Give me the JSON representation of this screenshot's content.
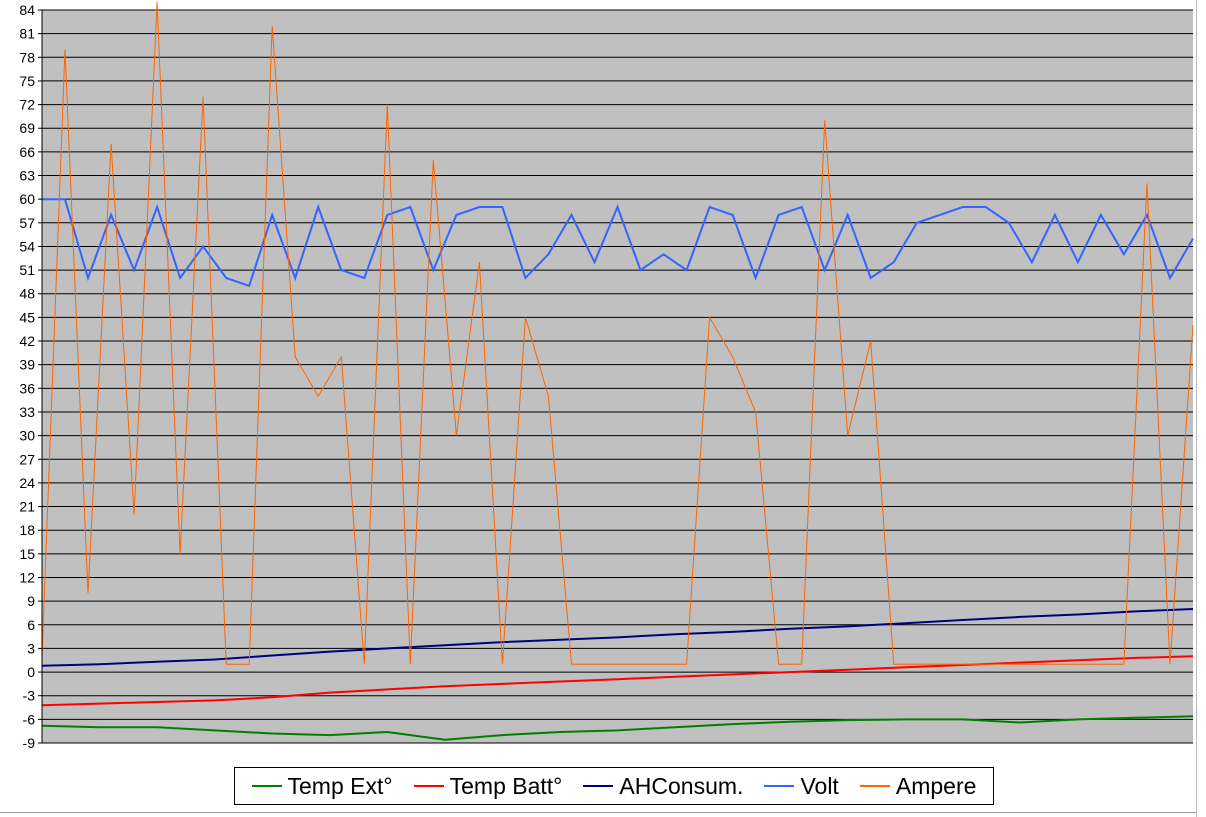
{
  "chart_data": {
    "type": "line",
    "title": "",
    "xlabel": "",
    "ylabel": "",
    "ylim": [
      -9,
      84
    ],
    "yticks": [
      -9,
      -6,
      -3,
      0,
      3,
      6,
      9,
      12,
      15,
      18,
      21,
      24,
      27,
      30,
      33,
      36,
      39,
      42,
      45,
      48,
      51,
      54,
      57,
      60,
      63,
      66,
      69,
      72,
      75,
      78,
      81,
      84
    ],
    "grid": true,
    "plot_background": "#c0c0c0",
    "legend_position": "bottom",
    "series": [
      {
        "name": "Temp Ext°",
        "color": "#008000",
        "x": [
          0,
          5,
          10,
          15,
          20,
          25,
          30,
          35,
          40,
          45,
          50,
          55,
          60,
          65,
          70,
          75,
          80,
          85,
          90,
          95,
          100
        ],
        "values": [
          -6.8,
          -7.0,
          -7.0,
          -7.4,
          -7.8,
          -8.0,
          -7.6,
          -8.6,
          -8.0,
          -7.6,
          -7.4,
          -7.0,
          -6.6,
          -6.3,
          -6.1,
          -6.0,
          -6.0,
          -6.4,
          -6.0,
          -5.8,
          -5.6
        ]
      },
      {
        "name": "Temp Batt°",
        "color": "#ff0000",
        "x": [
          0,
          5,
          10,
          15,
          20,
          25,
          30,
          35,
          40,
          45,
          50,
          55,
          60,
          65,
          70,
          75,
          80,
          85,
          90,
          95,
          100
        ],
        "values": [
          -4.2,
          -4.0,
          -3.8,
          -3.6,
          -3.2,
          -2.6,
          -2.2,
          -1.8,
          -1.5,
          -1.2,
          -0.9,
          -0.6,
          -0.3,
          0.0,
          0.3,
          0.6,
          0.9,
          1.2,
          1.5,
          1.8,
          2.0
        ]
      },
      {
        "name": "AHConsum.",
        "color": "#000080",
        "x": [
          0,
          5,
          10,
          15,
          20,
          25,
          30,
          35,
          40,
          45,
          50,
          55,
          60,
          65,
          70,
          75,
          80,
          85,
          90,
          95,
          100
        ],
        "values": [
          0.8,
          1.0,
          1.3,
          1.6,
          2.1,
          2.6,
          3.0,
          3.4,
          3.8,
          4.1,
          4.4,
          4.8,
          5.1,
          5.5,
          5.8,
          6.2,
          6.6,
          7.0,
          7.3,
          7.7,
          8.0
        ]
      },
      {
        "name": "Volt",
        "color": "#3366ff",
        "x": [
          0,
          2,
          4,
          6,
          8,
          10,
          12,
          14,
          16,
          18,
          20,
          22,
          24,
          26,
          28,
          30,
          32,
          34,
          36,
          38,
          40,
          42,
          44,
          46,
          48,
          50,
          52,
          54,
          56,
          58,
          60,
          62,
          64,
          66,
          68,
          70,
          72,
          74,
          76,
          78,
          80,
          82,
          84,
          86,
          88,
          90,
          92,
          94,
          96,
          98,
          100
        ],
        "values": [
          60,
          60,
          50,
          58,
          51,
          59,
          50,
          54,
          50,
          49,
          58,
          50,
          59,
          51,
          50,
          58,
          59,
          51,
          58,
          59,
          59,
          50,
          53,
          58,
          52,
          59,
          51,
          53,
          51,
          59,
          58,
          50,
          58,
          59,
          51,
          58,
          50,
          52,
          57,
          58,
          59,
          59,
          57,
          52,
          58,
          52,
          58,
          53,
          58,
          50,
          55
        ]
      },
      {
        "name": "Ampere",
        "color": "#ff6600",
        "x": [
          0,
          2,
          4,
          6,
          8,
          10,
          12,
          14,
          16,
          18,
          20,
          22,
          24,
          26,
          28,
          30,
          32,
          34,
          36,
          38,
          40,
          42,
          44,
          46,
          48,
          50,
          52,
          54,
          56,
          58,
          60,
          62,
          64,
          66,
          68,
          70,
          72,
          74,
          76,
          78,
          80,
          82,
          84,
          86,
          88,
          90,
          92,
          94,
          96,
          98,
          100
        ],
        "values": [
          2,
          79,
          10,
          67,
          20,
          85,
          15,
          73,
          1,
          1,
          82,
          40,
          35,
          40,
          1,
          72,
          1,
          65,
          30,
          52,
          1,
          45,
          35,
          1,
          1,
          1,
          1,
          1,
          1,
          45,
          40,
          33,
          1,
          1,
          70,
          30,
          42,
          1,
          1,
          1,
          1,
          1,
          1,
          1,
          1,
          1,
          1,
          1,
          62,
          1,
          44
        ]
      }
    ]
  },
  "legend": {
    "items": [
      {
        "label": "Temp Ext°",
        "color": "#008000"
      },
      {
        "label": "Temp Batt°",
        "color": "#ff0000"
      },
      {
        "label": "AHConsum.",
        "color": "#000080"
      },
      {
        "label": "Volt",
        "color": "#3366ff"
      },
      {
        "label": "Ampere",
        "color": "#ff6600"
      }
    ]
  }
}
